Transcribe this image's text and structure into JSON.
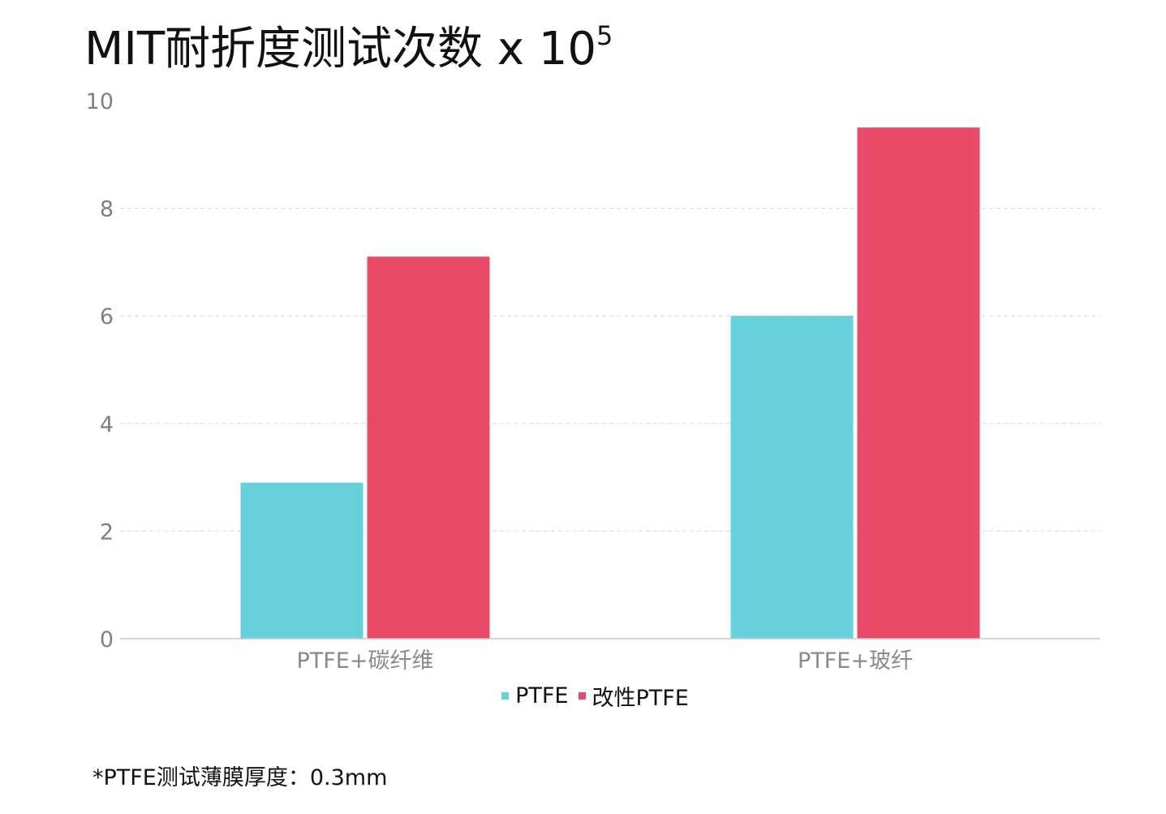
{
  "chart_data": {
    "type": "bar",
    "title": "MIT耐折度测试次数 x 10",
    "title_superscript": "5",
    "categories": [
      "PTFE+碳纤维",
      "PTFE+玻纤"
    ],
    "series": [
      {
        "name": "PTFE",
        "color": "#66D1DA",
        "values": [
          2.9,
          6.0
        ]
      },
      {
        "name": "改性PTFE",
        "color": "#E84A68",
        "values": [
          7.1,
          9.5
        ]
      }
    ],
    "yticks": [
      "0",
      "2",
      "4",
      "6",
      "8",
      "10"
    ],
    "ylim": [
      0,
      10
    ],
    "xlabel": "",
    "ylabel": "",
    "grid": true,
    "legend_position": "bottom-center"
  },
  "footnote": "*PTFE测试薄膜厚度：0.3mm"
}
